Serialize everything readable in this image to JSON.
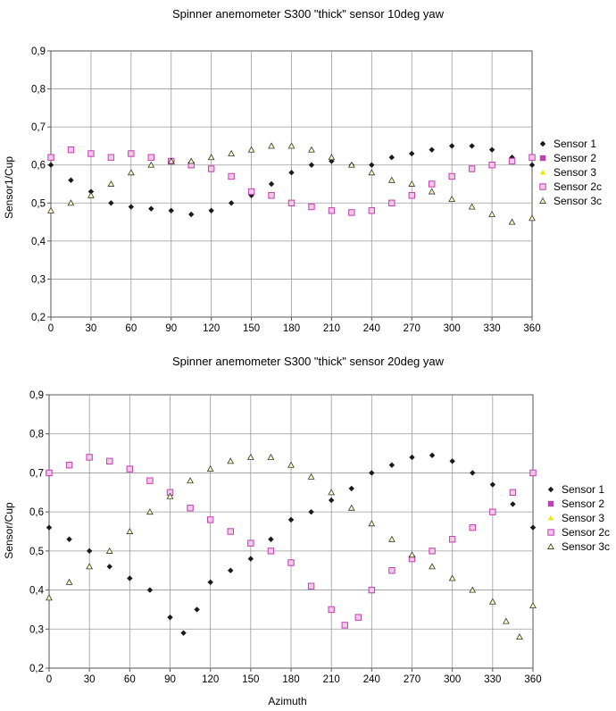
{
  "chart_data": [
    {
      "type": "scatter",
      "title": "Spinner anemometer S300  \"thick\" sensor 10deg yaw",
      "xlabel": "",
      "ylabel": "Sensor1/Cup",
      "xlim": [
        0,
        360
      ],
      "ylim": [
        0.2,
        0.9
      ],
      "x_ticks": [
        "0",
        "30",
        "60",
        "90",
        "120",
        "150",
        "180",
        "210",
        "240",
        "270",
        "300",
        "330",
        "360"
      ],
      "y_ticks": [
        "0,2",
        "0,3",
        "0,4",
        "0,5",
        "0,6",
        "0,7",
        "0,8",
        "0,9"
      ],
      "grid": true,
      "legend_position": "right",
      "series": [
        {
          "name": "Sensor 1",
          "marker": "diamond",
          "color": "#1a1a1a",
          "x": [
            0,
            15,
            30,
            45,
            60,
            75,
            90,
            105,
            120,
            135,
            150,
            165,
            180,
            195,
            210,
            225,
            240,
            255,
            270,
            285,
            300,
            315,
            330,
            345,
            360
          ],
          "y": [
            0.6,
            0.56,
            0.53,
            0.5,
            0.49,
            0.485,
            0.48,
            0.47,
            0.48,
            0.5,
            0.52,
            0.55,
            0.58,
            0.6,
            0.61,
            0.6,
            0.6,
            0.62,
            0.63,
            0.64,
            0.65,
            0.65,
            0.64,
            0.62,
            0.6
          ]
        },
        {
          "name": "Sensor 2",
          "marker": "square",
          "color": "#c040b0",
          "x": [
            0,
            15,
            30,
            45,
            60,
            75,
            90,
            105,
            120,
            135,
            150,
            165,
            180,
            195,
            210,
            225,
            240,
            255,
            270,
            285,
            300,
            315,
            330,
            345,
            360
          ],
          "y": [
            0.62,
            0.64,
            0.63,
            0.62,
            0.63,
            0.62,
            0.61,
            0.6,
            0.59,
            0.57,
            0.53,
            0.52,
            0.5,
            0.49,
            0.48,
            0.475,
            0.48,
            0.5,
            0.52,
            0.55,
            0.57,
            0.59,
            0.6,
            0.61,
            0.62
          ]
        },
        {
          "name": "Sensor 3",
          "marker": "triangle",
          "color": "#f0e800",
          "x": [
            0,
            15,
            30,
            45,
            60,
            75,
            90,
            105,
            120,
            135,
            150,
            165,
            180,
            195,
            210,
            225,
            240,
            255,
            270,
            285,
            300,
            315,
            330,
            345,
            360
          ],
          "y": [
            0.48,
            0.5,
            0.52,
            0.55,
            0.58,
            0.6,
            0.61,
            0.61,
            0.62,
            0.63,
            0.64,
            0.65,
            0.65,
            0.64,
            0.62,
            0.6,
            0.58,
            0.56,
            0.55,
            0.53,
            0.51,
            0.49,
            0.47,
            0.45,
            0.46
          ]
        },
        {
          "name": "Sensor 2c",
          "marker": "square-outline",
          "color": "#c040b0",
          "x": [
            0,
            15,
            30,
            45,
            60,
            75,
            90,
            105,
            120,
            135,
            150,
            165,
            180,
            195,
            210,
            225,
            240,
            255,
            270,
            285,
            300,
            315,
            330,
            345,
            360
          ],
          "y": [
            0.62,
            0.64,
            0.63,
            0.62,
            0.63,
            0.62,
            0.61,
            0.6,
            0.59,
            0.57,
            0.53,
            0.52,
            0.5,
            0.49,
            0.48,
            0.475,
            0.48,
            0.5,
            0.52,
            0.55,
            0.57,
            0.59,
            0.6,
            0.61,
            0.62
          ]
        },
        {
          "name": "Sensor 3c",
          "marker": "triangle-outline",
          "color": "#333333",
          "x": [
            0,
            15,
            30,
            45,
            60,
            75,
            90,
            105,
            120,
            135,
            150,
            165,
            180,
            195,
            210,
            225,
            240,
            255,
            270,
            285,
            300,
            315,
            330,
            345,
            360
          ],
          "y": [
            0.48,
            0.5,
            0.52,
            0.55,
            0.58,
            0.6,
            0.61,
            0.61,
            0.62,
            0.63,
            0.64,
            0.65,
            0.65,
            0.64,
            0.62,
            0.6,
            0.58,
            0.56,
            0.55,
            0.53,
            0.51,
            0.49,
            0.47,
            0.45,
            0.46
          ]
        }
      ]
    },
    {
      "type": "scatter",
      "title": "Spinner anemometer S300  \"thick\" sensor 20deg yaw",
      "xlabel": "Azimuth",
      "ylabel": "Sensor/Cup",
      "xlim": [
        0,
        360
      ],
      "ylim": [
        0.2,
        0.9
      ],
      "x_ticks": [
        "0",
        "30",
        "60",
        "90",
        "120",
        "150",
        "180",
        "210",
        "240",
        "270",
        "300",
        "330",
        "360"
      ],
      "y_ticks": [
        "0,2",
        "0,3",
        "0,4",
        "0,5",
        "0,6",
        "0,7",
        "0,8",
        "0,9"
      ],
      "grid": true,
      "legend_position": "right",
      "series": [
        {
          "name": "Sensor 1",
          "marker": "diamond",
          "color": "#1a1a1a",
          "x": [
            0,
            15,
            30,
            45,
            60,
            75,
            90,
            100,
            110,
            120,
            135,
            150,
            165,
            180,
            195,
            210,
            225,
            240,
            255,
            270,
            285,
            300,
            315,
            330,
            345,
            360
          ],
          "y": [
            0.56,
            0.53,
            0.5,
            0.46,
            0.43,
            0.4,
            0.33,
            0.29,
            0.35,
            0.42,
            0.45,
            0.48,
            0.53,
            0.58,
            0.6,
            0.63,
            0.66,
            0.7,
            0.72,
            0.74,
            0.745,
            0.73,
            0.7,
            0.67,
            0.62,
            0.56
          ]
        },
        {
          "name": "Sensor 2",
          "marker": "square",
          "color": "#c040b0",
          "x": [
            0,
            15,
            30,
            45,
            60,
            75,
            90,
            105,
            120,
            135,
            150,
            165,
            180,
            195,
            210,
            220,
            230,
            240,
            255,
            270,
            285,
            300,
            315,
            330,
            345,
            360
          ],
          "y": [
            0.7,
            0.72,
            0.74,
            0.73,
            0.71,
            0.68,
            0.65,
            0.61,
            0.58,
            0.55,
            0.52,
            0.5,
            0.47,
            0.41,
            0.35,
            0.31,
            0.33,
            0.4,
            0.45,
            0.48,
            0.5,
            0.53,
            0.56,
            0.6,
            0.65,
            0.7
          ]
        },
        {
          "name": "Sensor 3",
          "marker": "triangle",
          "color": "#f0e800",
          "x": [
            0,
            15,
            30,
            45,
            60,
            75,
            90,
            105,
            120,
            135,
            150,
            165,
            180,
            195,
            210,
            225,
            240,
            255,
            270,
            285,
            300,
            315,
            330,
            340,
            350,
            360
          ],
          "y": [
            0.38,
            0.42,
            0.46,
            0.5,
            0.55,
            0.6,
            0.64,
            0.68,
            0.71,
            0.73,
            0.74,
            0.74,
            0.72,
            0.69,
            0.65,
            0.61,
            0.57,
            0.53,
            0.49,
            0.46,
            0.43,
            0.4,
            0.37,
            0.32,
            0.28,
            0.36
          ]
        },
        {
          "name": "Sensor 2c",
          "marker": "square-outline",
          "color": "#c040b0",
          "x": [
            0,
            15,
            30,
            45,
            60,
            75,
            90,
            105,
            120,
            135,
            150,
            165,
            180,
            195,
            210,
            220,
            230,
            240,
            255,
            270,
            285,
            300,
            315,
            330,
            345,
            360
          ],
          "y": [
            0.7,
            0.72,
            0.74,
            0.73,
            0.71,
            0.68,
            0.65,
            0.61,
            0.58,
            0.55,
            0.52,
            0.5,
            0.47,
            0.41,
            0.35,
            0.31,
            0.33,
            0.4,
            0.45,
            0.48,
            0.5,
            0.53,
            0.56,
            0.6,
            0.65,
            0.7
          ]
        },
        {
          "name": "Sensor 3c",
          "marker": "triangle-outline",
          "color": "#333333",
          "x": [
            0,
            15,
            30,
            45,
            60,
            75,
            90,
            105,
            120,
            135,
            150,
            165,
            180,
            195,
            210,
            225,
            240,
            255,
            270,
            285,
            300,
            315,
            330,
            340,
            350,
            360
          ],
          "y": [
            0.38,
            0.42,
            0.46,
            0.5,
            0.55,
            0.6,
            0.64,
            0.68,
            0.71,
            0.73,
            0.74,
            0.74,
            0.72,
            0.69,
            0.65,
            0.61,
            0.57,
            0.53,
            0.49,
            0.46,
            0.43,
            0.4,
            0.37,
            0.32,
            0.28,
            0.36
          ]
        }
      ]
    }
  ]
}
